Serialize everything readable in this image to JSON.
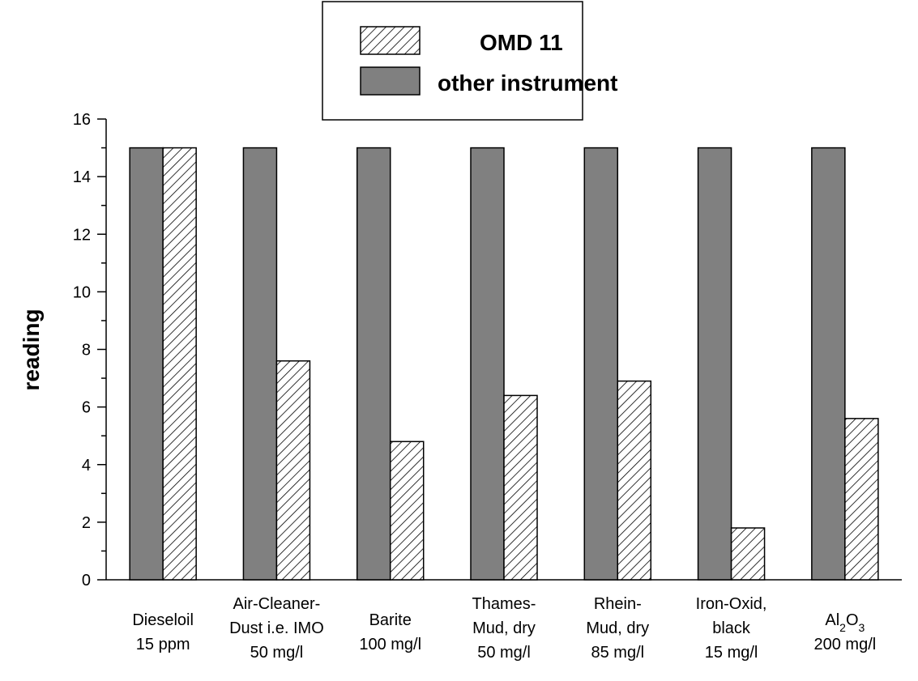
{
  "chart_data": {
    "type": "bar",
    "title": "",
    "xlabel": "",
    "ylabel": "reading",
    "ylim": [
      0,
      16
    ],
    "yticks": [
      0,
      2,
      4,
      6,
      8,
      10,
      12,
      14,
      16
    ],
    "grid": false,
    "legend_position": "top-center",
    "categories": [
      [
        "Dieseloil",
        "15 ppm"
      ],
      [
        "Air-Cleaner-",
        "Dust i.e. IMO",
        "50 mg/l"
      ],
      [
        "Barite",
        "100 mg/l"
      ],
      [
        "Thames-",
        "Mud, dry",
        "50 mg/l"
      ],
      [
        "Rhein-",
        "Mud, dry",
        "85 mg/l"
      ],
      [
        "Iron-Oxid,",
        "black",
        "15 mg/l"
      ],
      [
        "Al2O3",
        "200 mg/l"
      ]
    ],
    "series": [
      {
        "name": "other instrument",
        "color": "#808080",
        "pattern": "solid",
        "values": [
          15,
          15,
          15,
          15,
          15,
          15,
          15
        ]
      },
      {
        "name": "OMD 11",
        "color": "#ffffff",
        "pattern": "hatch",
        "values": [
          15,
          7.6,
          4.8,
          6.4,
          6.9,
          1.8,
          5.6
        ]
      }
    ]
  }
}
